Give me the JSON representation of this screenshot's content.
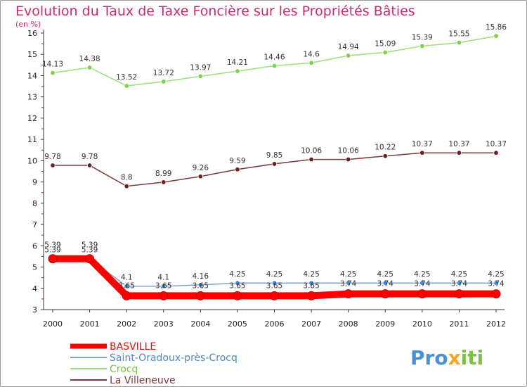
{
  "chart_data": {
    "type": "line",
    "title": "Evolution du Taux de Taxe Foncière sur les Propriétés Bâties",
    "subtitle": "(en %)",
    "x": [
      "2000",
      "2001",
      "2002",
      "2003",
      "2004",
      "2005",
      "2006",
      "2007",
      "2008",
      "2009",
      "2010",
      "2011",
      "2012"
    ],
    "ylim": [
      3,
      16
    ],
    "yticks": [
      3,
      4,
      5,
      6,
      7,
      8,
      9,
      10,
      11,
      12,
      13,
      14,
      15,
      16
    ],
    "grid": false,
    "legend_position": "bottom-left",
    "series": [
      {
        "name": "BASVILLE",
        "color": "#ff0000",
        "values": [
          5.39,
          5.39,
          3.65,
          3.65,
          3.65,
          3.65,
          3.65,
          3.65,
          3.74,
          3.74,
          3.74,
          3.74,
          3.74
        ],
        "labels": [
          "5.39",
          "5.39",
          "3.65",
          "3.65",
          "3.65",
          "3.65",
          "3.65",
          "3.65",
          "3.74",
          "3.74",
          "3.74",
          "3.74",
          "3.74"
        ]
      },
      {
        "name": "Saint-Oradoux-près-Crocq",
        "color": "#7aa6d6",
        "values": [
          5.39,
          5.39,
          4.1,
          4.1,
          4.16,
          4.25,
          4.25,
          4.25,
          4.25,
          4.25,
          4.25,
          4.25,
          4.25
        ],
        "labels": [
          "5.39",
          "5.39",
          "4.1",
          "4.1",
          "4.16",
          "4.25",
          "4.25",
          "4.25",
          "4.25",
          "4.25",
          "4.25",
          "4.25",
          "4.25"
        ]
      },
      {
        "name": "Crocq",
        "color": "#9be07a",
        "values": [
          14.13,
          14.38,
          13.52,
          13.72,
          13.97,
          14.21,
          14.46,
          14.6,
          14.94,
          15.09,
          15.39,
          15.55,
          15.86
        ],
        "labels": [
          "14.13",
          "14.38",
          "13.52",
          "13.72",
          "13.97",
          "14.21",
          "14.46",
          "14.6",
          "14.94",
          "15.09",
          "15.39",
          "15.55",
          "15.86"
        ]
      },
      {
        "name": "La Villeneuve",
        "color": "#7a3a3a",
        "values": [
          9.78,
          9.78,
          8.8,
          8.99,
          9.26,
          9.59,
          9.85,
          10.06,
          10.06,
          10.22,
          10.37,
          10.37,
          10.37
        ],
        "labels": [
          "9.78",
          "9.78",
          "8.8",
          "8.99",
          "9.26",
          "9.59",
          "9.85",
          "10.06",
          "10.06",
          "10.22",
          "10.37",
          "10.37",
          "10.37"
        ]
      }
    ]
  },
  "branding": {
    "logo_parts": [
      "Pro",
      "x",
      "iti"
    ],
    "logo_colors": [
      "#4a90d9",
      "#f5a623",
      "#7cc242"
    ]
  }
}
